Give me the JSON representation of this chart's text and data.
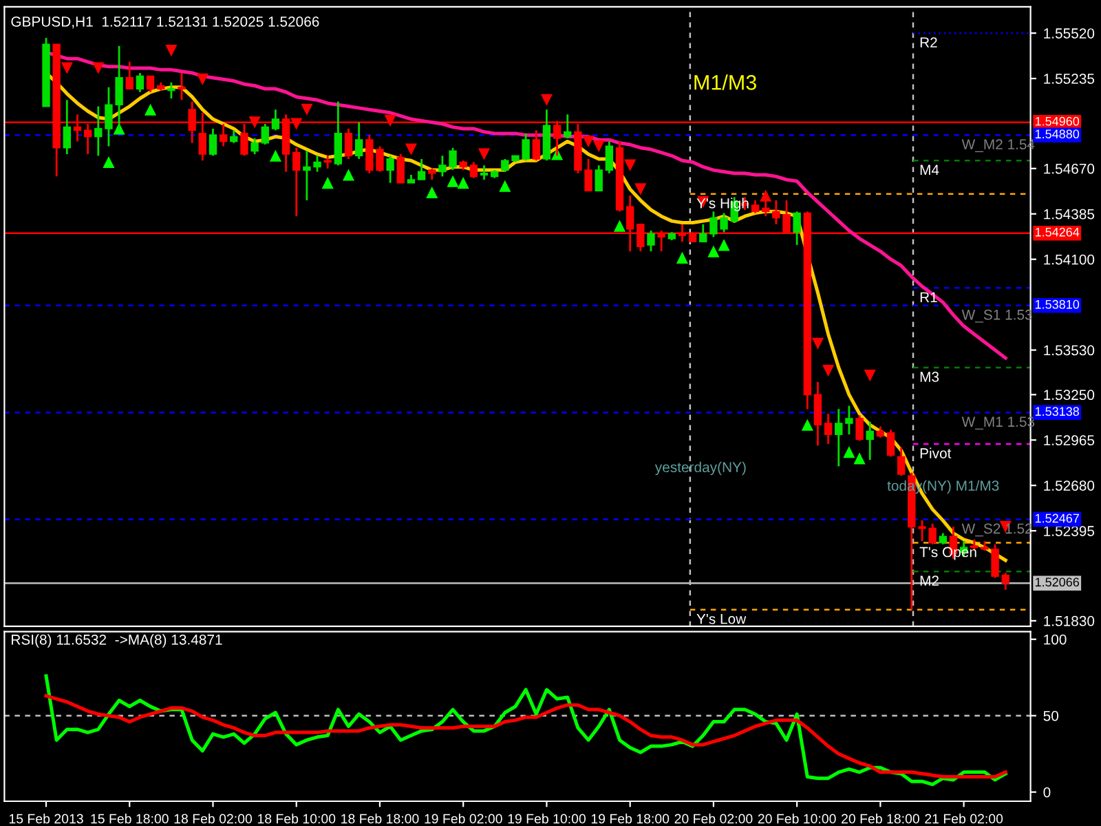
{
  "chart_data": [
    {
      "type": "candlestick",
      "title": "GBPUSD,H1  1.52117 1.52131 1.52025 1.52066",
      "tick_labels": "y",
      "categories": [
        null,
        null,
        null,
        null,
        null,
        null,
        null,
        null,
        null,
        null,
        null,
        null,
        null,
        null,
        null,
        null,
        null,
        null,
        null,
        null,
        null,
        null,
        null,
        null,
        null,
        null,
        null,
        null,
        null,
        null,
        null,
        null,
        null,
        null,
        null,
        null,
        null,
        null,
        null,
        null,
        null,
        null,
        null,
        null,
        null,
        null,
        null,
        null,
        null,
        null,
        null,
        null,
        null,
        null,
        null,
        null,
        null,
        null,
        null,
        null,
        null,
        null,
        null,
        null,
        null,
        null,
        null,
        null,
        null,
        null,
        null,
        null,
        null,
        null,
        null,
        null,
        null,
        null,
        null,
        null,
        null,
        null,
        null,
        null,
        null,
        null,
        null,
        null,
        null,
        null,
        null,
        null,
        null
      ],
      "ohlc": [
        [
          1.5506,
          1.5549,
          1.5506,
          1.5545
        ],
        [
          1.5545,
          1.5545,
          1.5462,
          1.548
        ],
        [
          1.548,
          1.551,
          1.5476,
          1.5493
        ],
        [
          1.5493,
          1.5501,
          1.5484,
          1.5491
        ],
        [
          1.5491,
          1.5495,
          1.5476,
          1.5487
        ],
        [
          1.5487,
          1.5506,
          1.5475,
          1.5492
        ],
        [
          1.5492,
          1.5518,
          1.5481,
          1.5507
        ],
        [
          1.5507,
          1.5544,
          1.5491,
          1.5524
        ],
        [
          1.5524,
          1.5534,
          1.5517,
          1.5517
        ],
        [
          1.5517,
          1.5527,
          1.5515,
          1.5525
        ],
        [
          1.5525,
          1.5525,
          1.5515,
          1.5517
        ],
        [
          1.5519,
          1.5521,
          1.5516,
          1.5517
        ],
        [
          1.5516,
          1.5521,
          1.5511,
          1.5517
        ],
        [
          1.5518,
          1.5527,
          1.551,
          1.5517
        ],
        [
          1.5504,
          1.5509,
          1.5483,
          1.5491
        ],
        [
          1.5489,
          1.5502,
          1.5472,
          1.5476
        ],
        [
          1.5476,
          1.5492,
          1.5475,
          1.5488
        ],
        [
          1.5488,
          1.5495,
          1.5481,
          1.5484
        ],
        [
          1.5484,
          1.5491,
          1.5483,
          1.5487
        ],
        [
          1.5489,
          1.5495,
          1.5475,
          1.5476
        ],
        [
          1.5478,
          1.5486,
          1.5476,
          1.5483
        ],
        [
          1.5483,
          1.5495,
          1.5482,
          1.5493
        ],
        [
          1.5492,
          1.5504,
          1.5491,
          1.5498
        ],
        [
          1.5498,
          1.5501,
          1.5465,
          1.5476
        ],
        [
          1.5477,
          1.548,
          1.5437,
          1.5466
        ],
        [
          1.5466,
          1.5478,
          1.5447,
          1.5468
        ],
        [
          1.5468,
          1.5475,
          1.5465,
          1.5471
        ],
        [
          1.5472,
          1.5475,
          1.5467,
          1.5471
        ],
        [
          1.547,
          1.5509,
          1.5469,
          1.5489
        ],
        [
          1.5489,
          1.5492,
          1.5473,
          1.5475
        ],
        [
          1.5475,
          1.5496,
          1.5473,
          1.5485
        ],
        [
          1.5485,
          1.5488,
          1.5464,
          1.5466
        ],
        [
          1.5479,
          1.5481,
          1.5465,
          1.5466
        ],
        [
          1.5466,
          1.5475,
          1.5458,
          1.5473
        ],
        [
          1.5474,
          1.5476,
          1.5458,
          1.5458
        ],
        [
          1.5458,
          1.5463,
          1.5458,
          1.546
        ],
        [
          1.546,
          1.5473,
          1.546,
          1.5465
        ],
        [
          1.5466,
          1.5467,
          1.546,
          1.5464
        ],
        [
          1.5465,
          1.5475,
          1.5462,
          1.5469
        ],
        [
          1.5468,
          1.548,
          1.5466,
          1.5478
        ],
        [
          1.5471,
          1.5472,
          1.5466,
          1.5468
        ],
        [
          1.5469,
          1.5471,
          1.5461,
          1.5462
        ],
        [
          1.5463,
          1.5469,
          1.546,
          1.5464
        ],
        [
          1.5462,
          1.5466,
          1.5461,
          1.5465
        ],
        [
          1.5466,
          1.5473,
          1.5465,
          1.5472
        ],
        [
          1.5472,
          1.5475,
          1.5471,
          1.5475
        ],
        [
          1.5473,
          1.5489,
          1.5472,
          1.5485
        ],
        [
          1.5485,
          1.5491,
          1.5472,
          1.5473
        ],
        [
          1.5473,
          1.5504,
          1.5472,
          1.5494
        ],
        [
          1.5494,
          1.5497,
          1.5475,
          1.5486
        ],
        [
          1.5487,
          1.5501,
          1.5486,
          1.549
        ],
        [
          1.549,
          1.5495,
          1.5464,
          1.5466
        ],
        [
          1.5466,
          1.5473,
          1.5453,
          1.5453
        ],
        [
          1.5453,
          1.5469,
          1.5453,
          1.5466
        ],
        [
          1.5466,
          1.5484,
          1.5464,
          1.5481
        ],
        [
          1.548,
          1.5484,
          1.544,
          1.5441
        ],
        [
          1.5443,
          1.545,
          1.5415,
          1.5429
        ],
        [
          1.5432,
          1.5432,
          1.5415,
          1.5418
        ],
        [
          1.5419,
          1.5428,
          1.5415,
          1.5426
        ],
        [
          1.5426,
          1.5428,
          1.5415,
          1.5424
        ],
        [
          1.5423,
          1.5427,
          1.5422,
          1.5426
        ],
        [
          1.5426,
          1.5432,
          1.5421,
          1.5425
        ],
        [
          1.5426,
          1.5427,
          1.5421,
          1.5421
        ],
        [
          1.5421,
          1.5432,
          1.5421,
          1.5426
        ],
        [
          1.5426,
          1.544,
          1.5424,
          1.5436
        ],
        [
          1.5429,
          1.5439,
          1.5427,
          1.5436
        ],
        [
          1.5434,
          1.5449,
          1.5433,
          1.5446
        ],
        [
          1.5445,
          1.5449,
          1.5441,
          1.5444
        ],
        [
          1.5444,
          1.5447,
          1.5439,
          1.544
        ],
        [
          1.5442,
          1.5452,
          1.5437,
          1.544
        ],
        [
          1.544,
          1.5447,
          1.5432,
          1.5436
        ],
        [
          1.5438,
          1.5447,
          1.5426,
          1.5427
        ],
        [
          1.5427,
          1.544,
          1.5419,
          1.5439
        ],
        [
          1.5439,
          1.544,
          1.5316,
          1.5325
        ],
        [
          1.5325,
          1.5333,
          1.5293,
          1.5306
        ],
        [
          1.5307,
          1.5313,
          1.5294,
          1.53
        ],
        [
          1.53,
          1.5316,
          1.528,
          1.5307
        ],
        [
          1.5307,
          1.5318,
          1.53,
          1.531
        ],
        [
          1.531,
          1.5312,
          1.5296,
          1.5297
        ],
        [
          1.5297,
          1.5308,
          1.5284,
          1.5302
        ],
        [
          1.5302,
          1.5305,
          1.5298,
          1.5299
        ],
        [
          1.5301,
          1.5303,
          1.5286,
          1.5287
        ],
        [
          1.5286,
          1.5292,
          1.5274,
          1.5275
        ],
        [
          1.5274,
          1.5276,
          1.519,
          1.5242
        ],
        [
          1.5242,
          1.5246,
          1.5233,
          1.5241
        ],
        [
          1.5241,
          1.5244,
          1.5231,
          1.5232
        ],
        [
          1.5232,
          1.5238,
          1.5231,
          1.5236
        ],
        [
          1.5236,
          1.5242,
          1.5222,
          1.5225
        ],
        [
          1.5226,
          1.5233,
          1.5223,
          1.5229
        ],
        [
          1.523,
          1.5234,
          1.5227,
          1.5229
        ],
        [
          1.5229,
          1.5233,
          1.5227,
          1.5228
        ],
        [
          1.5228,
          1.5231,
          1.521,
          1.5211
        ],
        [
          1.52117,
          1.52131,
          1.52025,
          1.52066
        ]
      ],
      "colors": [
        "#00e000",
        "#ff0000",
        "#00e000",
        "#ff0000",
        "#ff0000",
        "#00e000",
        "#00e000",
        "#00e000",
        "#ff0000",
        "#00e000",
        "#ff0000",
        "#ff0000",
        "#00e000",
        "#ff0000",
        "#ff0000",
        "#ff0000",
        "#00e000",
        "#ff0000",
        "#00e000",
        "#ff0000",
        "#00e000",
        "#00e000",
        "#00e000",
        "#ff0000",
        "#ff0000",
        "#00e000",
        "#00e000",
        "#ff0000",
        "#00e000",
        "#ff0000",
        "#00e000",
        "#ff0000",
        "#ff0000",
        "#00e000",
        "#ff0000",
        "#00e000",
        "#00e000",
        "#ff0000",
        "#00e000",
        "#00e000",
        "#ff0000",
        "#ff0000",
        "#00e000",
        "#00e000",
        "#00e000",
        "#00e000",
        "#00e000",
        "#ff0000",
        "#00e000",
        "#ff0000",
        "#00e000",
        "#ff0000",
        "#ff0000",
        "#00e000",
        "#00e000",
        "#ff0000",
        "#ff0000",
        "#ff0000",
        "#00e000",
        "#ff0000",
        "#00e000",
        "#ff0000",
        "#ff0000",
        "#00e000",
        "#00e000",
        "#00e000",
        "#00e000",
        "#ff0000",
        "#ff0000",
        "#ff0000",
        "#ff0000",
        "#ff0000",
        "#00e000",
        "#ff0000",
        "#ff0000",
        "#ff0000",
        "#00e000",
        "#00e000",
        "#ff0000",
        "#00e000",
        "#ff0000",
        "#ff0000",
        "#ff0000",
        "#ff0000",
        "#ff0000",
        "#ff0000",
        "#00e000",
        "#ff0000",
        "#00e000",
        "#ff0000",
        "#ff0000",
        "#ff0000",
        "#ff0000"
      ],
      "series": [
        {
          "type": "line",
          "color": "#ff1493",
          "values": [
            1.554,
            1.5538,
            1.5536,
            1.5536,
            1.5534,
            1.5532,
            1.5531,
            1.5531,
            1.553,
            1.553,
            1.553,
            1.5529,
            1.5529,
            1.5528,
            1.5527,
            1.5525,
            1.5524,
            1.5523,
            1.5522,
            1.552,
            1.5519,
            1.5517,
            1.5517,
            1.5515,
            1.5512,
            1.5511,
            1.551,
            1.5508,
            1.5507,
            1.5506,
            1.5505,
            1.5504,
            1.5503,
            1.5502,
            1.55,
            1.5498,
            1.5497,
            1.5496,
            1.5495,
            1.5493,
            1.5492,
            1.5492,
            1.549,
            1.5489,
            1.5489,
            1.5489,
            1.5488,
            1.5488,
            1.5488,
            1.5488,
            1.5487,
            1.5487,
            1.5487,
            1.5485,
            1.5485,
            1.5483,
            1.5482,
            1.548,
            1.5479,
            1.5477,
            1.5475,
            1.5472,
            1.5471,
            1.5468,
            1.5466,
            1.5465,
            1.5464,
            1.5464,
            1.5463,
            1.5463,
            1.5462,
            1.546,
            1.5459,
            1.5452,
            1.5446,
            1.544,
            1.5434,
            1.5428,
            1.5423,
            1.5419,
            1.5415,
            1.541,
            1.5406,
            1.5399,
            1.5393,
            1.5388,
            1.5383,
            1.5375,
            1.5368,
            1.5363,
            1.5358,
            1.5353,
            1.5348
          ]
        },
        {
          "type": "line",
          "color": "#ffcc00",
          "values": [
            1.5527,
            1.5521,
            1.5514,
            1.5508,
            1.5503,
            1.5499,
            1.5498,
            1.5502,
            1.5506,
            1.5511,
            1.5515,
            1.5517,
            1.5518,
            1.5518,
            1.5512,
            1.5504,
            1.5498,
            1.5495,
            1.5492,
            1.5487,
            1.5484,
            1.5485,
            1.5487,
            1.5486,
            1.5482,
            1.5479,
            1.5476,
            1.5474,
            1.5475,
            1.5476,
            1.5478,
            1.5479,
            1.5477,
            1.5475,
            1.5473,
            1.5472,
            1.5469,
            1.5466,
            1.5466,
            1.5468,
            1.5468,
            1.5466,
            1.5466,
            1.5466,
            1.5466,
            1.5471,
            1.5472,
            1.5472,
            1.5476,
            1.548,
            1.5484,
            1.5481,
            1.5476,
            1.5473,
            1.5473,
            1.5465,
            1.5454,
            1.5447,
            1.5441,
            1.5437,
            1.5434,
            1.5433,
            1.5433,
            1.5434,
            1.5435,
            1.5437,
            1.5434,
            1.5437,
            1.5439,
            1.544,
            1.544,
            1.5439,
            1.5437,
            null,
            1.5389,
            1.5363,
            1.5342,
            1.5325,
            1.5313,
            1.5306,
            1.5302,
            1.5298,
            1.529,
            1.5276,
            1.5263,
            1.5253,
            1.5246,
            1.5238,
            1.5234,
            1.5232,
            1.5229,
            1.5225,
            1.5221
          ]
        },
        {
          "type": "scatter",
          "marker": "triangle",
          "color": "#ff0000",
          "values": [
            null,
            null,
            1.553,
            null,
            null,
            1.553,
            null,
            null,
            null,
            null,
            null,
            null,
            1.5541,
            null,
            null,
            1.5523,
            null,
            null,
            null,
            null,
            1.5496,
            null,
            null,
            null,
            1.5495,
            1.5504,
            null,
            null,
            null,
            null,
            null,
            null,
            null,
            1.5497,
            null,
            1.5479,
            null,
            null,
            null,
            null,
            null,
            null,
            1.5476,
            null,
            null,
            null,
            null,
            null,
            1.551,
            null,
            null,
            null,
            1.5484,
            1.5481,
            null,
            null,
            1.5469,
            1.5454,
            null,
            null,
            null,
            null,
            null,
            1.5446,
            null,
            null,
            null,
            null,
            null,
            1.545,
            null,
            null,
            null,
            null,
            1.5357,
            1.534,
            null,
            null,
            null,
            1.5337,
            null,
            null,
            null,
            null,
            null,
            null,
            null,
            null,
            null,
            null,
            null,
            null,
            1.5242
          ]
        },
        {
          "type": "scatter",
          "marker": "triangle",
          "color": "#00ff00",
          "values": [
            null,
            null,
            null,
            null,
            null,
            null,
            1.5471,
            1.5492,
            null,
            null,
            1.5504,
            null,
            null,
            null,
            null,
            null,
            null,
            null,
            null,
            null,
            null,
            null,
            1.5475,
            null,
            null,
            null,
            null,
            1.5458,
            null,
            1.5463,
            null,
            null,
            null,
            null,
            null,
            null,
            null,
            1.5452,
            null,
            1.5459,
            1.5458,
            null,
            null,
            null,
            1.5456,
            null,
            null,
            null,
            null,
            1.5476,
            null,
            null,
            null,
            null,
            null,
            1.5431,
            null,
            null,
            null,
            null,
            null,
            1.5411,
            null,
            null,
            1.5415,
            1.5419,
            null,
            null,
            null,
            null,
            null,
            null,
            null,
            1.5306,
            null,
            null,
            null,
            1.5289,
            1.5285,
            null,
            null,
            null,
            null,
            null,
            null,
            null,
            null,
            null,
            null,
            null,
            null,
            null,
            null
          ]
        }
      ],
      "ylim": [
        1.51795,
        1.55685
      ],
      "yticks": [
        {
          "value": 1.5552,
          "label": "1.55520"
        },
        {
          "value": 1.55235,
          "label": "1.55235"
        },
        {
          "value": 1.5467,
          "label": "1.54670"
        },
        {
          "value": 1.54385,
          "label": "1.54385"
        },
        {
          "value": 1.541,
          "label": "1.54100"
        },
        {
          "value": 1.5353,
          "label": "1.53530"
        },
        {
          "value": 1.5325,
          "label": "1.53250"
        },
        {
          "value": 1.52965,
          "label": "1.52965"
        },
        {
          "value": 1.5268,
          "label": "1.52680"
        },
        {
          "value": 1.52395,
          "label": "1.52395"
        },
        {
          "value": 1.5183,
          "label": "1.51830"
        }
      ],
      "ref_lines": [
        {
          "axis": "y",
          "value": 1.5496,
          "label": "1.54960",
          "color": "#ff0000",
          "line_style": "solid"
        },
        {
          "axis": "y",
          "value": 1.5488,
          "label": "1.54880",
          "color": "#0000ff",
          "line_style": "dashed"
        },
        {
          "axis": "y",
          "value": 1.54264,
          "label": "1.54264",
          "color": "#ff0000",
          "line_style": "solid"
        },
        {
          "axis": "y",
          "value": 1.5381,
          "label": "1.53810",
          "color": "#0000ff",
          "line_style": "dashed"
        },
        {
          "axis": "y",
          "value": 1.53138,
          "label": "1.53138",
          "color": "#0000ff",
          "line_style": "dashed"
        },
        {
          "axis": "y",
          "value": 1.52467,
          "label": "1.52467",
          "color": "#0000ff",
          "line_style": "dashed"
        },
        {
          "axis": "y",
          "value": 1.52066,
          "label": "1.52066",
          "color": "#c0c0c0",
          "line_style": "solid"
        },
        {
          "axis": "y",
          "value": 1.5451,
          "label": "Y's High",
          "color": "#ffa500",
          "line_style": "dashed"
        },
        {
          "axis": "y",
          "value": 1.519,
          "label": "Y's Low",
          "color": "#ffa500",
          "line_style": "dashed"
        },
        {
          "axis": "y",
          "value": 1.5552,
          "label": "R2",
          "color": "#0000ff",
          "line_style": "dotted"
        },
        {
          "axis": "y",
          "value": 1.5472,
          "label": "M4",
          "color": "#008000",
          "line_style": "dashed"
        },
        {
          "axis": "y",
          "value": 1.5392,
          "label": "R1",
          "color": "#0000ff",
          "line_style": "dashed"
        },
        {
          "axis": "y",
          "value": 1.5342,
          "label": "M3",
          "color": "#008000",
          "line_style": "dashed"
        },
        {
          "axis": "y",
          "value": 1.5294,
          "label": "Pivot",
          "color": "#ff00ff",
          "line_style": "dashed"
        },
        {
          "axis": "y",
          "value": 1.5232,
          "label": "T's Open",
          "color": "#ffa500",
          "line_style": "dashed"
        },
        {
          "axis": "y",
          "value": 1.5214,
          "label": "M2",
          "color": "#008000",
          "line_style": "dashed"
        }
      ],
      "annotations": [
        "M1/M3",
        "yesterday(NY)",
        "today(NY) M1/M3",
        {
          "text": "W_M2 1.54",
          "y": 1.5488
        },
        {
          "text": "W_S1 1.53",
          "y": 1.5381
        },
        {
          "text": "W_M1 1.53",
          "y": 1.53138
        },
        {
          "text": "W_S2 1.52",
          "y": 1.52467
        }
      ]
    },
    {
      "type": "line",
      "title": "RSI(8) 11.6532  ->MA(8) 13.4871",
      "categories": [
        "15 Feb 2013",
        null,
        null,
        null,
        null,
        null,
        null,
        null,
        "15 Feb 18:00",
        null,
        null,
        null,
        null,
        null,
        null,
        null,
        "18 Feb 02:00",
        null,
        null,
        null,
        null,
        null,
        null,
        null,
        "18 Feb 10:00",
        null,
        null,
        null,
        null,
        null,
        null,
        null,
        "18 Feb 18:00",
        null,
        null,
        null,
        null,
        null,
        null,
        null,
        "19 Feb 02:00",
        null,
        null,
        null,
        null,
        null,
        null,
        null,
        "19 Feb 10:00",
        null,
        null,
        null,
        null,
        null,
        null,
        null,
        "19 Feb 18:00",
        null,
        null,
        null,
        null,
        null,
        null,
        null,
        "20 Feb 02:00",
        null,
        null,
        null,
        null,
        null,
        null,
        null,
        "20 Feb 10:00",
        null,
        null,
        null,
        null,
        null,
        null,
        null,
        "20 Feb 18:00",
        null,
        null,
        null,
        null,
        null,
        null,
        null,
        "21 Feb 02:00",
        null,
        null,
        null,
        null
      ],
      "series": [
        {
          "type": "line",
          "color": "#00ff00",
          "values": [
            76,
            34,
            41,
            41,
            39,
            41,
            51,
            60,
            56,
            60,
            56,
            53,
            54,
            54,
            34,
            27,
            38,
            36,
            38,
            32,
            38,
            48,
            52,
            38,
            31,
            34,
            36,
            37,
            54,
            43,
            51,
            46,
            39,
            43,
            34,
            37,
            40,
            41,
            46,
            54,
            46,
            40,
            40,
            43,
            52,
            56,
            67,
            51,
            67,
            61,
            62,
            42,
            34,
            43,
            54,
            34,
            29,
            26,
            30,
            30,
            31,
            33,
            30,
            37,
            46,
            46,
            54,
            54,
            51,
            46,
            45,
            34,
            51,
            10,
            9,
            9,
            13,
            15,
            13,
            16,
            16,
            13,
            12,
            7,
            7,
            5,
            9,
            8,
            13,
            13,
            13,
            8,
            12
          ]
        },
        {
          "type": "line",
          "color": "#ff0000",
          "values": [
            63,
            61,
            59,
            56,
            53,
            51,
            50,
            49,
            46,
            49,
            51,
            53,
            55,
            55,
            53,
            49,
            47,
            44,
            42,
            39,
            37,
            37,
            39,
            39,
            39,
            39,
            39,
            40,
            40,
            40,
            40,
            42,
            43,
            44,
            44,
            43,
            42,
            42,
            42,
            42,
            43,
            43,
            43,
            43,
            46,
            47,
            49,
            49,
            52,
            55,
            57,
            57,
            54,
            54,
            52,
            50,
            46,
            41,
            37,
            36,
            36,
            34,
            31,
            31,
            33,
            35,
            37,
            40,
            43,
            45,
            47,
            47,
            47,
            42,
            36,
            30,
            25,
            22,
            19,
            17,
            13,
            13,
            13,
            13,
            12,
            11,
            10,
            10,
            10,
            10,
            10,
            10,
            13
          ]
        }
      ],
      "ylim": [
        -6,
        105
      ],
      "yticks": [
        0,
        50,
        100
      ],
      "ref_lines": [
        {
          "axis": "y",
          "value": 50,
          "label": null,
          "color": "#c0c0c0",
          "line_style": "dashed"
        }
      ]
    }
  ]
}
